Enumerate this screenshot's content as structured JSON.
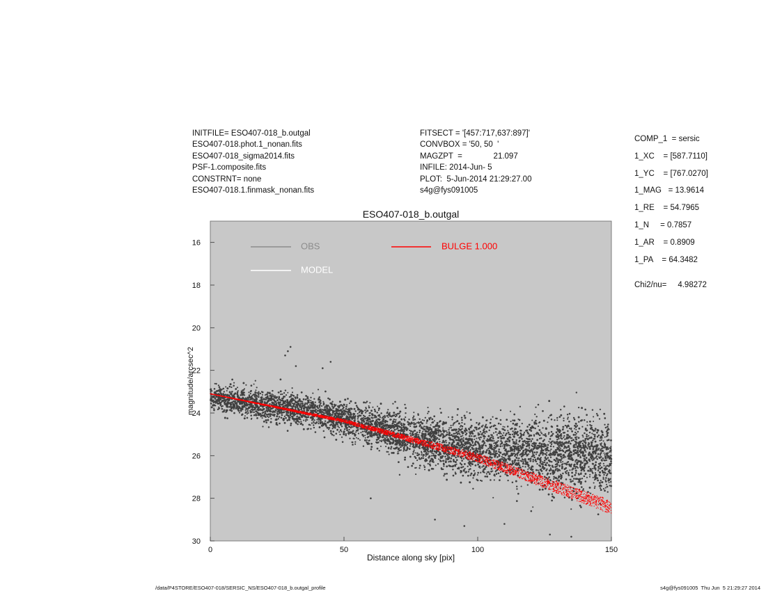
{
  "header": {
    "left_lines": [
      "INITFILE= ESO407-018_b.outgal",
      "ESO407-018.phot.1_nonan.fits",
      "ESO407-018_sigma2014.fits",
      "PSF-1.composite.fits",
      "CONSTRNT= none",
      "ESO407-018.1.finmask_nonan.fits"
    ],
    "mid_lines": [
      "FITSECT = '[457:717,637:897]'",
      "CONVBOX = '50, 50  '",
      "MAGZPT  =              21.097",
      "INFILE: 2014-Jun- 5",
      "PLOT:  5-Jun-2014 21:29:27.00",
      "s4g@fys091005"
    ],
    "right_params": [
      "COMP_1  = sersic",
      "1_XC    = [587.7110]",
      "1_YC    = [767.0270]",
      "1_MAG   = 13.9614",
      "1_RE    = 54.7965",
      "1_N     = 0.7857",
      "1_AR    = 0.8909",
      "1_PA    = 64.3482"
    ],
    "chi_label": "Chi2/nu=",
    "chi_value": "4.98272"
  },
  "footer": {
    "path": "/data/P4STORE/ESO407-018/SERSIC_NS/ESO407-018_b.outgal_profile",
    "stamp": "s4g@fys091005  Thu Jun  5 21:29:27 2014"
  },
  "chart_data": {
    "type": "scatter",
    "title": "ESO407-018_b.outgal",
    "xlabel": "Distance along sky [pix]",
    "ylabel": "magnitude/arcsec^2",
    "xlim": [
      0,
      150
    ],
    "ylim": [
      30,
      15
    ],
    "x_ticks": [
      0,
      50,
      100,
      150
    ],
    "y_ticks": [
      16,
      18,
      20,
      22,
      24,
      26,
      28,
      30
    ],
    "background": "#c8c8c8",
    "grid": false,
    "legend": [
      {
        "label": "OBS",
        "color": "#8c8c8c"
      },
      {
        "label": "MODEL",
        "color": "#ffffff"
      },
      {
        "label": "BULGE  1.000",
        "color": "#ff0000"
      }
    ],
    "series": [
      {
        "name": "OBS",
        "color": "#404040",
        "trend": {
          "x": [
            0,
            40,
            80,
            100,
            150
          ],
          "y": [
            23.3,
            24.0,
            25.3,
            25.7,
            26.0
          ]
        },
        "scatter_sigma_mag": {
          "x": [
            0,
            50,
            100,
            150
          ],
          "y": [
            0.3,
            0.4,
            0.7,
            0.9
          ]
        },
        "outliers_bright": [
          [
            28,
            21.3
          ],
          [
            29,
            21.1
          ],
          [
            30,
            20.9
          ],
          [
            42,
            21.9
          ],
          [
            45,
            21.6
          ],
          [
            32,
            21.8
          ]
        ],
        "outliers_faint": [
          [
            84,
            29.0
          ],
          [
            95,
            29.3
          ],
          [
            110,
            29.2
          ],
          [
            127,
            29.7
          ],
          [
            135,
            29.8
          ],
          [
            60,
            28.0
          ],
          [
            120,
            28.6
          ]
        ]
      },
      {
        "name": "BULGE  1.000",
        "color": "#ff0000",
        "band_upper": {
          "x": [
            0,
            50,
            100,
            150
          ],
          "y": [
            23.1,
            24.3,
            25.9,
            28.1
          ]
        },
        "band_lower": {
          "x": [
            0,
            50,
            100,
            150
          ],
          "y": [
            23.1,
            24.45,
            26.3,
            28.75
          ]
        }
      }
    ]
  }
}
